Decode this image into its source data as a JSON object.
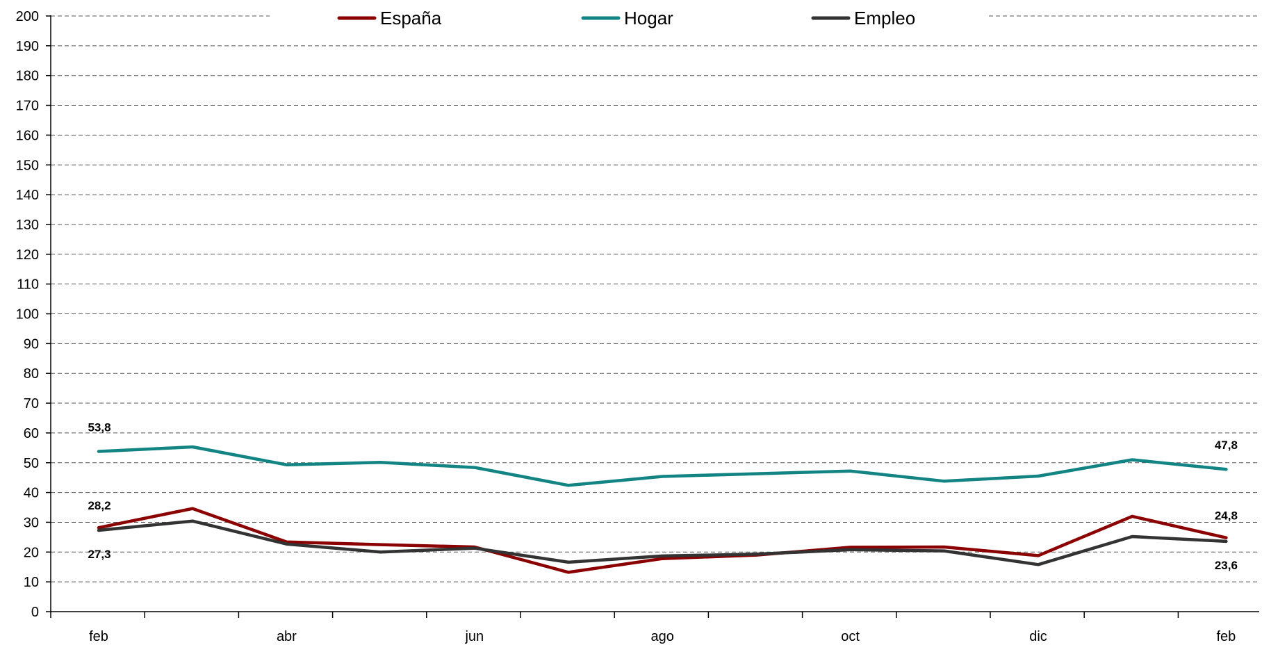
{
  "chart_data": {
    "type": "line",
    "title": "",
    "xlabel": "",
    "ylabel": "",
    "ylim": [
      0,
      200
    ],
    "y_ticks": [
      0,
      10,
      20,
      30,
      40,
      50,
      60,
      70,
      80,
      90,
      100,
      110,
      120,
      130,
      140,
      150,
      160,
      170,
      180,
      190,
      200
    ],
    "grid": "horizontal dashed",
    "legend_position": "top",
    "x_points": 13,
    "x_tick_labels": [
      {
        "index": 0,
        "label": "feb"
      },
      {
        "index": 2,
        "label": "abr"
      },
      {
        "index": 4,
        "label": "jun"
      },
      {
        "index": 6,
        "label": "ago"
      },
      {
        "index": 8,
        "label": "oct"
      },
      {
        "index": 10,
        "label": "dic"
      },
      {
        "index": 12,
        "label": "feb"
      }
    ],
    "series": [
      {
        "name": "España",
        "color": "#8B0000",
        "values": [
          28.2,
          34.6,
          23.4,
          22.5,
          21.7,
          13.2,
          17.8,
          19.0,
          21.6,
          21.7,
          18.8,
          32.0,
          24.8
        ],
        "labels": [
          {
            "index": 0,
            "text": "28,2"
          },
          {
            "index": 12,
            "text": "24,8"
          }
        ]
      },
      {
        "name": "Hogar",
        "color": "#138484",
        "values": [
          53.8,
          55.3,
          49.3,
          50.1,
          48.4,
          42.4,
          45.4,
          46.3,
          47.2,
          43.8,
          45.5,
          51.0,
          47.8
        ],
        "labels": [
          {
            "index": 0,
            "text": "53,8"
          },
          {
            "index": 12,
            "text": "47,8"
          }
        ]
      },
      {
        "name": "Empleo",
        "color": "#333333",
        "values": [
          27.3,
          30.4,
          22.7,
          20.0,
          21.3,
          16.6,
          18.7,
          19.3,
          20.8,
          20.4,
          15.8,
          25.2,
          23.6
        ],
        "labels": [
          {
            "index": 0,
            "text": "27,3"
          },
          {
            "index": 12,
            "text": "23,6"
          }
        ]
      }
    ]
  }
}
